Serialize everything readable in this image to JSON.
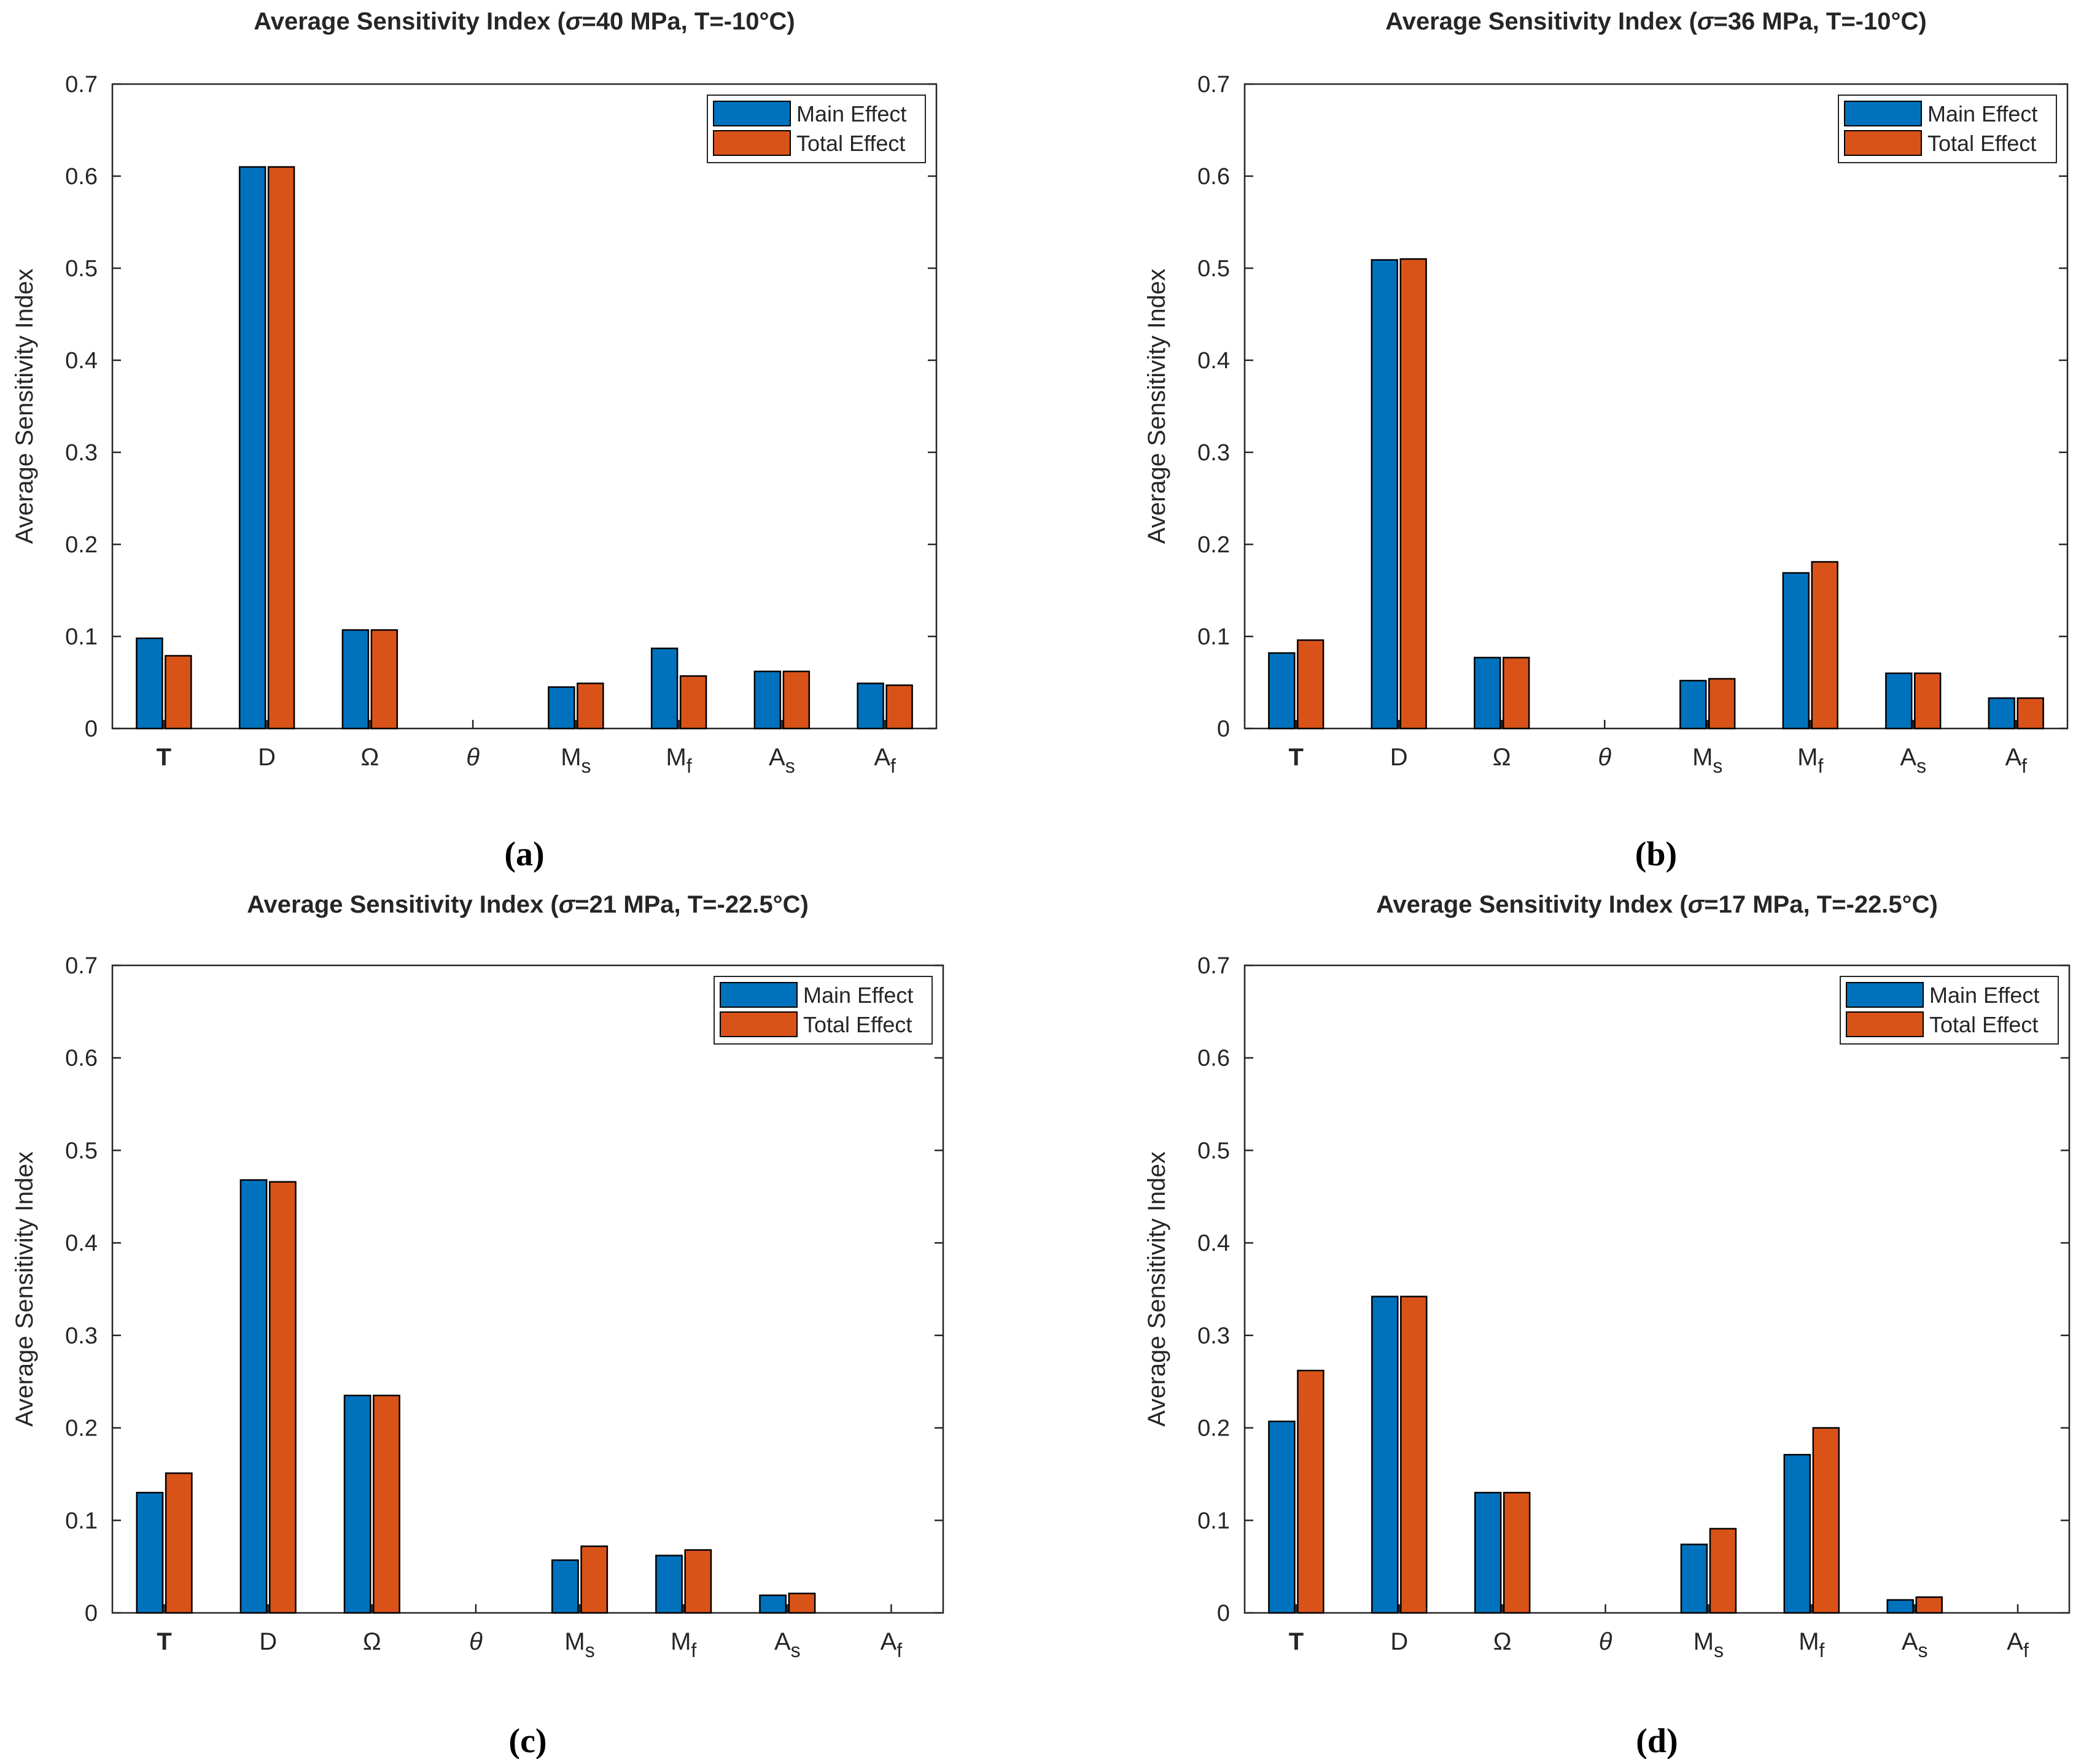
{
  "chart_data": [
    {
      "type": "bar",
      "panel_label": "(a)",
      "title": "Average Sensitivity Index (σ=40 MPa, T=-10°C)",
      "ylabel": "Average Sensitivity Index",
      "xlabel": "",
      "ylim": [
        0,
        0.7
      ],
      "yticks": [
        "0",
        "0.1",
        "0.2",
        "0.3",
        "0.4",
        "0.5",
        "0.6",
        "0.7"
      ],
      "categories": [
        "T",
        "D",
        "Ω",
        "θ",
        "M_s",
        "M_f",
        "A_s",
        "A_f"
      ],
      "legend_position": "top-right",
      "series": [
        {
          "name": "Main Effect",
          "values": [
            0.098,
            0.61,
            0.107,
            0.0,
            0.045,
            0.087,
            0.062,
            0.049
          ]
        },
        {
          "name": "Total Effect",
          "values": [
            0.079,
            0.61,
            0.107,
            0.0,
            0.049,
            0.057,
            0.062,
            0.047
          ]
        }
      ]
    },
    {
      "type": "bar",
      "panel_label": "(b)",
      "title": "Average Sensitivity Index (σ=36 MPa, T=-10°C)",
      "ylabel": "Average Sensitivity Index",
      "xlabel": "",
      "ylim": [
        0,
        0.7
      ],
      "yticks": [
        "0",
        "0.1",
        "0.2",
        "0.3",
        "0.4",
        "0.5",
        "0.6",
        "0.7"
      ],
      "categories": [
        "T",
        "D",
        "Ω",
        "θ",
        "M_s",
        "M_f",
        "A_s",
        "A_f"
      ],
      "legend_position": "top-right",
      "series": [
        {
          "name": "Main Effect",
          "values": [
            0.082,
            0.509,
            0.077,
            0.0,
            0.052,
            0.169,
            0.06,
            0.033
          ]
        },
        {
          "name": "Total Effect",
          "values": [
            0.096,
            0.51,
            0.077,
            0.0,
            0.054,
            0.181,
            0.06,
            0.033
          ]
        }
      ]
    },
    {
      "type": "bar",
      "panel_label": "(c)",
      "title": "Average Sensitivity Index (σ=21 MPa, T=-22.5°C)",
      "ylabel": "Average Sensitivity Index",
      "xlabel": "",
      "ylim": [
        0,
        0.7
      ],
      "yticks": [
        "0",
        "0.1",
        "0.2",
        "0.3",
        "0.4",
        "0.5",
        "0.6",
        "0.7"
      ],
      "categories": [
        "T",
        "D",
        "Ω",
        "θ",
        "M_s",
        "M_f",
        "A_s",
        "A_f"
      ],
      "legend_position": "top-right",
      "series": [
        {
          "name": "Main Effect",
          "values": [
            0.13,
            0.468,
            0.235,
            0.0,
            0.057,
            0.062,
            0.019,
            0.0
          ]
        },
        {
          "name": "Total Effect",
          "values": [
            0.151,
            0.466,
            0.235,
            0.0,
            0.072,
            0.068,
            0.021,
            0.0
          ]
        }
      ]
    },
    {
      "type": "bar",
      "panel_label": "(d)",
      "title": "Average Sensitivity Index (σ=17 MPa, T=-22.5°C)",
      "ylabel": "Average Sensitivity Index",
      "xlabel": "",
      "ylim": [
        0,
        0.7
      ],
      "yticks": [
        "0",
        "0.1",
        "0.2",
        "0.3",
        "0.4",
        "0.5",
        "0.6",
        "0.7"
      ],
      "categories": [
        "T",
        "D",
        "Ω",
        "θ",
        "M_s",
        "M_f",
        "A_s",
        "A_f"
      ],
      "legend_position": "top-right",
      "series": [
        {
          "name": "Main Effect",
          "values": [
            0.207,
            0.342,
            0.13,
            0.0,
            0.074,
            0.171,
            0.014,
            0.0
          ]
        },
        {
          "name": "Total Effect",
          "values": [
            0.262,
            0.342,
            0.13,
            0.0,
            0.091,
            0.2,
            0.017,
            0.0
          ]
        }
      ]
    }
  ],
  "colors": {
    "main_effect": "#0072BD",
    "total_effect": "#D95319",
    "axis": "#262626"
  }
}
